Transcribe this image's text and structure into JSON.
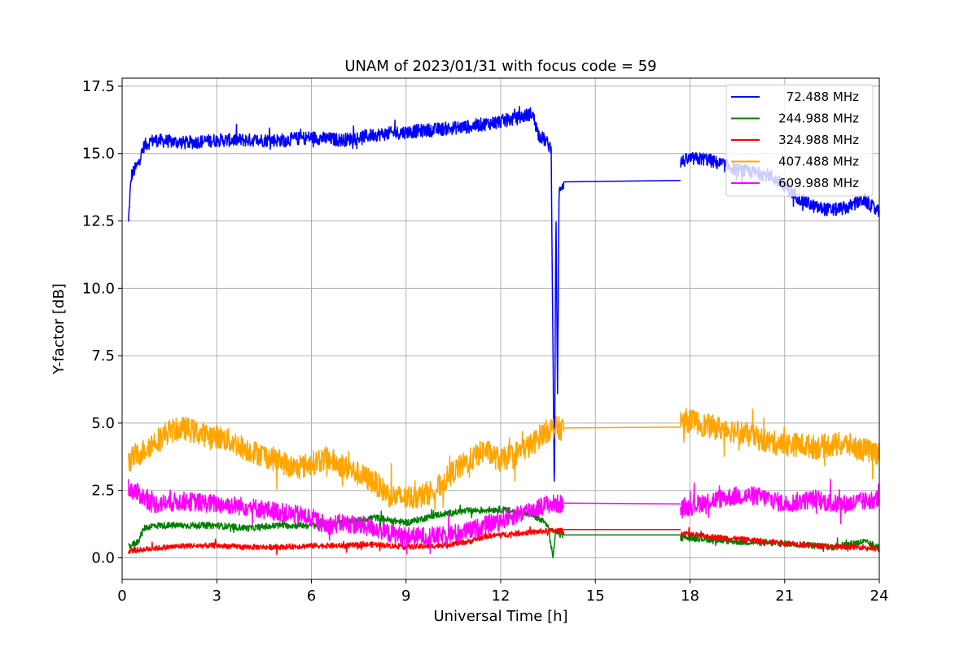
{
  "chart_data": {
    "type": "line",
    "title": "UNAM of 2023/01/31 with focus code = 59",
    "xlabel": "Universal Time [h]",
    "ylabel": "Y-factor [dB]",
    "xlim": [
      0,
      24
    ],
    "ylim": [
      -0.8,
      17.8
    ],
    "xticks": [
      0,
      3,
      6,
      9,
      12,
      15,
      18,
      21,
      24
    ],
    "yticks": [
      "0.0",
      "2.5",
      "5.0",
      "7.5",
      "10.0",
      "12.5",
      "15.0",
      "17.5"
    ],
    "grid": true,
    "legend_position": "upper right",
    "series": [
      {
        "name": "  72.488 MHz",
        "color": "#0000ff",
        "noise": 0.25,
        "segments": [
          {
            "x": [
              0.2,
              0.25,
              0.3,
              0.35,
              0.5,
              0.7,
              1.0,
              2.0,
              3.0,
              4.0,
              5.0,
              6.0,
              7.0,
              8.0,
              9.0,
              10.0,
              11.0,
              12.0,
              12.5,
              13.0,
              13.2,
              13.4,
              13.6,
              13.7,
              13.75,
              13.8,
              13.85,
              13.9,
              14.0
            ],
            "y": [
              12.4,
              13.5,
              14.2,
              14.3,
              14.6,
              15.3,
              15.5,
              15.4,
              15.5,
              15.5,
              15.5,
              15.6,
              15.5,
              15.7,
              15.8,
              15.9,
              16.0,
              16.2,
              16.3,
              16.5,
              15.7,
              15.5,
              15.2,
              2.0,
              13.0,
              6.0,
              13.5,
              13.8,
              13.9
            ]
          },
          {
            "x": [
              14.0,
              17.7
            ],
            "y": [
              13.95,
              14.0
            ],
            "noise": 0
          },
          {
            "x": [
              17.7,
              18.0,
              18.5,
              19.0,
              19.5,
              20.0,
              20.5,
              21.0,
              21.5,
              22.0,
              22.5,
              23.0,
              23.5,
              24.0
            ],
            "y": [
              14.7,
              14.8,
              14.8,
              14.6,
              14.4,
              14.3,
              14.2,
              13.8,
              13.3,
              13.0,
              12.9,
              13.0,
              13.3,
              12.8
            ]
          }
        ]
      },
      {
        "name": "244.988 MHz",
        "color": "#008000",
        "noise": 0.12,
        "segments": [
          {
            "x": [
              0.2,
              0.5,
              0.7,
              1.0,
              2.0,
              3.0,
              4.0,
              5.0,
              6.0,
              7.0,
              8.0,
              9.0,
              10.0,
              11.0,
              12.0,
              13.0,
              13.5,
              13.65,
              13.75,
              13.9,
              14.0
            ],
            "y": [
              0.4,
              0.6,
              1.1,
              1.2,
              1.2,
              1.2,
              1.1,
              1.2,
              1.2,
              1.3,
              1.5,
              1.3,
              1.6,
              1.75,
              1.8,
              1.6,
              1.2,
              0.0,
              1.0,
              0.85,
              0.85
            ]
          },
          {
            "x": [
              14.0,
              17.7
            ],
            "y": [
              0.85,
              0.85
            ],
            "noise": 0
          },
          {
            "x": [
              17.7,
              18.5,
              19.5,
              20.5,
              21.5,
              22.5,
              23.0,
              23.5,
              24.0
            ],
            "y": [
              0.75,
              0.7,
              0.6,
              0.55,
              0.5,
              0.4,
              0.5,
              0.6,
              0.4
            ]
          }
        ]
      },
      {
        "name": "324.988 MHz",
        "color": "#ff0000",
        "noise": 0.1,
        "segments": [
          {
            "x": [
              0.2,
              1.0,
              2.0,
              3.0,
              4.0,
              5.0,
              6.0,
              7.0,
              8.0,
              9.0,
              10.0,
              11.0,
              11.5,
              12.0,
              12.5,
              13.0,
              13.5,
              14.0
            ],
            "y": [
              0.25,
              0.35,
              0.45,
              0.45,
              0.4,
              0.4,
              0.45,
              0.45,
              0.5,
              0.4,
              0.45,
              0.6,
              0.8,
              0.85,
              0.9,
              0.95,
              1.0,
              1.0
            ]
          },
          {
            "x": [
              14.0,
              17.7
            ],
            "y": [
              1.05,
              1.05
            ],
            "noise": 0
          },
          {
            "x": [
              17.7,
              18.5,
              19.5,
              20.5,
              21.5,
              22.5,
              23.5,
              24.0
            ],
            "y": [
              0.9,
              0.8,
              0.7,
              0.6,
              0.5,
              0.4,
              0.4,
              0.3
            ]
          }
        ]
      },
      {
        "name": "407.488 MHz",
        "color": "#ffa500",
        "noise": 0.45,
        "segments": [
          {
            "x": [
              0.2,
              0.5,
              1.0,
              1.5,
              2.0,
              2.5,
              3.0,
              3.5,
              4.0,
              4.5,
              5.0,
              5.5,
              6.0,
              6.5,
              7.0,
              7.5,
              8.0,
              8.5,
              9.0,
              9.5,
              10.0,
              10.5,
              11.0,
              11.5,
              12.0,
              12.5,
              13.0,
              13.3,
              13.6,
              13.8,
              14.0
            ],
            "y": [
              3.6,
              3.8,
              4.3,
              4.7,
              4.8,
              4.6,
              4.5,
              4.3,
              4.0,
              3.8,
              3.6,
              3.3,
              3.5,
              3.7,
              3.4,
              3.1,
              2.8,
              2.3,
              2.2,
              2.3,
              2.6,
              3.2,
              3.6,
              4.0,
              3.6,
              3.9,
              4.2,
              4.6,
              4.8,
              4.8,
              4.8
            ]
          },
          {
            "x": [
              14.0,
              17.7
            ],
            "y": [
              4.82,
              4.85
            ],
            "noise": 0
          },
          {
            "x": [
              17.7,
              18.0,
              18.5,
              19.0,
              19.5,
              20.0,
              20.5,
              21.0,
              21.5,
              22.0,
              22.5,
              23.0,
              23.5,
              24.0
            ],
            "y": [
              5.1,
              5.1,
              4.9,
              4.8,
              4.7,
              4.5,
              4.3,
              4.2,
              4.2,
              4.1,
              4.2,
              4.2,
              4.0,
              3.9
            ]
          }
        ]
      },
      {
        "name": "609.988 MHz",
        "color": "#ff00ff",
        "noise": 0.35,
        "segments": [
          {
            "x": [
              0.2,
              0.5,
              1.0,
              2.0,
              3.0,
              4.0,
              5.0,
              6.0,
              6.5,
              7.0,
              7.5,
              8.0,
              8.5,
              9.0,
              9.5,
              10.0,
              10.5,
              11.0,
              11.5,
              12.0,
              12.5,
              13.0,
              13.5,
              14.0
            ],
            "y": [
              2.6,
              2.4,
              2.0,
              2.1,
              2.0,
              1.9,
              1.7,
              1.5,
              1.2,
              1.3,
              1.2,
              1.1,
              0.9,
              0.8,
              0.8,
              0.8,
              0.9,
              1.0,
              1.2,
              1.4,
              1.6,
              1.8,
              2.0,
              2.0
            ]
          },
          {
            "x": [
              14.0,
              17.7
            ],
            "y": [
              2.03,
              2.0
            ],
            "noise": 0
          },
          {
            "x": [
              17.7,
              18.0,
              18.5,
              19.0,
              19.5,
              20.0,
              20.5,
              21.0,
              21.5,
              22.0,
              22.5,
              23.0,
              23.5,
              24.0
            ],
            "y": [
              1.8,
              1.9,
              2.1,
              2.2,
              2.3,
              2.3,
              2.2,
              2.0,
              2.1,
              2.2,
              2.0,
              2.0,
              2.1,
              2.2
            ]
          }
        ]
      }
    ]
  }
}
